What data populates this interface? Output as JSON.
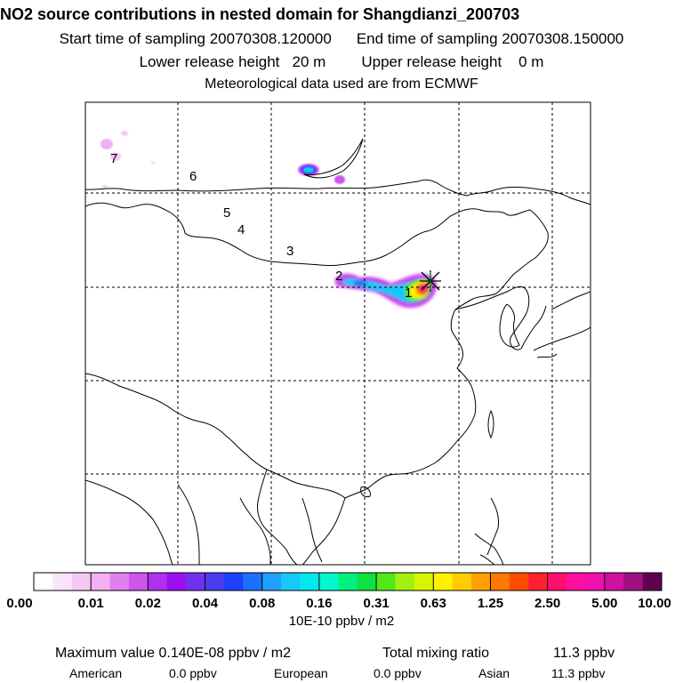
{
  "header": {
    "title": "NO2 source contributions in nested domain for Shangdianzi_200703",
    "start_label": "Start time of sampling 20070308.120000",
    "end_label": "End time of sampling 20070308.150000",
    "lower_label": "Lower release height   20 m",
    "upper_label": "Upper release height    0 m",
    "met_label": "Meteorological data used are from ECMWF"
  },
  "map": {
    "time_markers": [
      "1",
      "2",
      "3",
      "4",
      "5",
      "6",
      "7"
    ],
    "station_marker": "station-star-icon"
  },
  "colorbar": {
    "colors": [
      "#ffffff",
      "#fbe4fb",
      "#f6c8f6",
      "#f0b0f3",
      "#e080f0",
      "#cc55ee",
      "#b030ee",
      "#9a10f0",
      "#7030f0",
      "#4a3cf0",
      "#2040ff",
      "#1c70ff",
      "#20a0ff",
      "#18c8f8",
      "#00e8f0",
      "#00f8d0",
      "#00f080",
      "#10e040",
      "#50e818",
      "#a0f010",
      "#d8f400",
      "#fff000",
      "#ffcc00",
      "#ffa000",
      "#ff7800",
      "#ff4c00",
      "#ff2030",
      "#ff1070",
      "#ff10a0",
      "#ee10b0",
      "#d010a0",
      "#a01080",
      "#600050"
    ],
    "tick_labels": [
      "0.00",
      "0.01",
      "0.02",
      "0.04",
      "0.08",
      "0.16",
      "0.31",
      "0.63",
      "1.25",
      "2.50",
      "5.00",
      "10.00"
    ],
    "unit": "10E-10 ppbv / m2"
  },
  "stats": {
    "max_label": "Maximum value  0.140E-08 ppbv / m2",
    "total_label": "Total mixing ratio",
    "total_value": "11.3 ppbv",
    "american_label": "American",
    "american_value": "0.0 ppbv",
    "european_label": "European",
    "european_value": "0.0 ppbv",
    "asian_label": "Asian",
    "asian_value": "11.3 ppbv"
  }
}
